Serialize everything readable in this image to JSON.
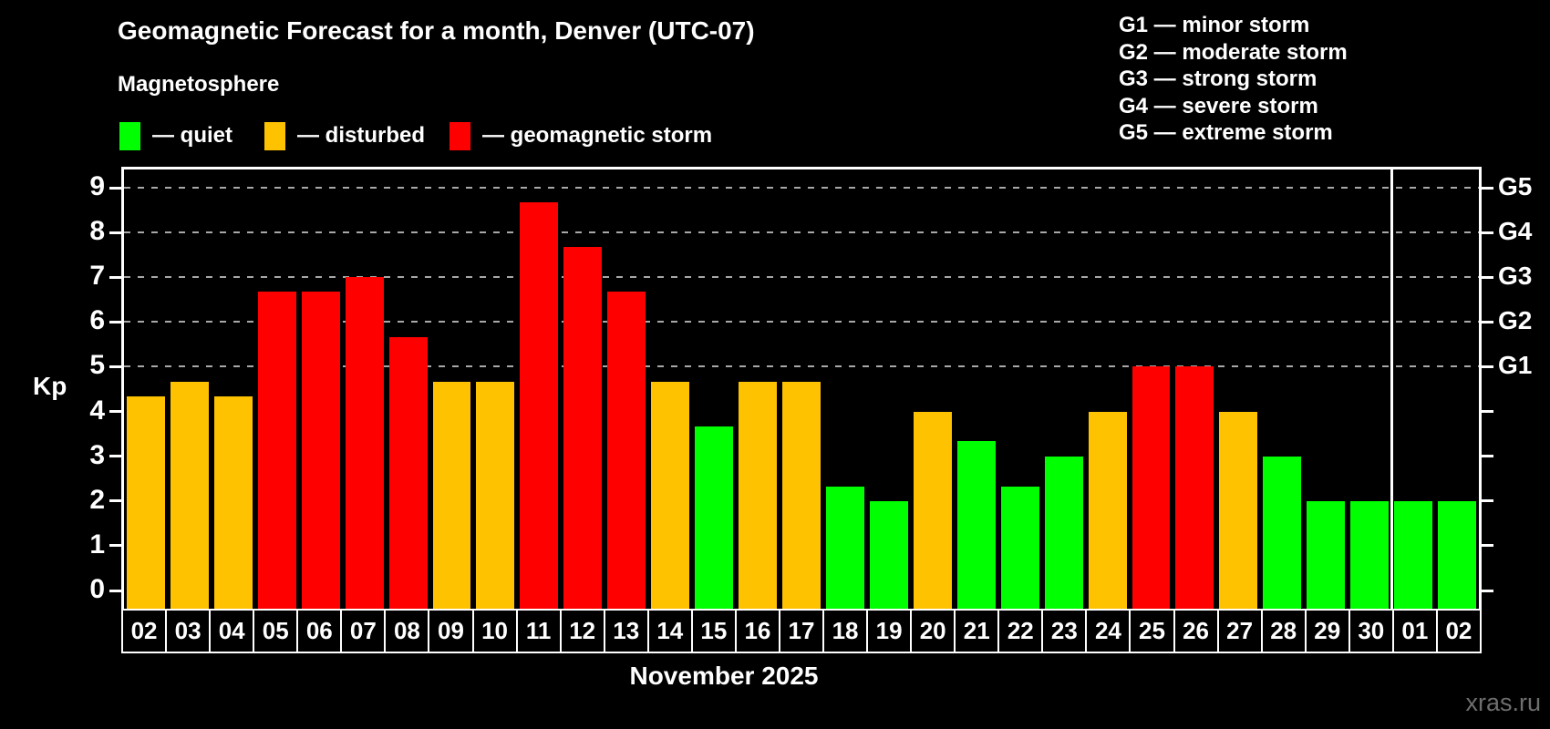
{
  "header": {
    "title": "Geomagnetic Forecast for a month, Denver (UTC-07)",
    "subtitle": "Magnetosphere"
  },
  "legend": {
    "items": [
      {
        "id": "quiet",
        "label": "— quiet",
        "color": "#00ff00"
      },
      {
        "id": "disturbed",
        "label": "— disturbed",
        "color": "#ffc200"
      },
      {
        "id": "storm",
        "label": "— geomagnetic storm",
        "color": "#ff0000"
      }
    ]
  },
  "storm_scale": {
    "items": [
      {
        "code": "G1",
        "label": "G1 — minor storm"
      },
      {
        "code": "G2",
        "label": "G2 — moderate storm"
      },
      {
        "code": "G3",
        "label": "G3 — strong storm"
      },
      {
        "code": "G4",
        "label": "G4 — severe storm"
      },
      {
        "code": "G5",
        "label": "G5 — extreme storm"
      }
    ]
  },
  "chart_data": {
    "type": "bar",
    "title": "Geomagnetic Forecast for a month, Denver (UTC-07)",
    "ylabel": "Kp",
    "xlabel": "November 2025",
    "ylim": [
      0,
      9
    ],
    "yticks": [
      0,
      1,
      2,
      3,
      4,
      5,
      6,
      7,
      8,
      9
    ],
    "grid_levels": [
      5,
      6,
      7,
      8,
      9
    ],
    "grid": "dashed",
    "legend_position": "top-left",
    "right_axis": [
      {
        "kp": 5,
        "label": "G1"
      },
      {
        "kp": 6,
        "label": "G2"
      },
      {
        "kp": 7,
        "label": "G3"
      },
      {
        "kp": 8,
        "label": "G4"
      },
      {
        "kp": 9,
        "label": "G5"
      }
    ],
    "categories": [
      "02",
      "03",
      "04",
      "05",
      "06",
      "07",
      "08",
      "09",
      "10",
      "11",
      "12",
      "13",
      "14",
      "15",
      "16",
      "17",
      "18",
      "19",
      "20",
      "21",
      "22",
      "23",
      "24",
      "25",
      "26",
      "27",
      "28",
      "29",
      "30",
      "01",
      "02"
    ],
    "values": [
      4.33,
      4.67,
      4.33,
      6.67,
      6.67,
      7,
      5.67,
      4.67,
      4.67,
      8.67,
      7.67,
      6.67,
      4.67,
      3.67,
      4.67,
      4.67,
      2.33,
      2,
      4,
      3.33,
      2.33,
      3,
      4,
      5,
      5,
      4,
      3,
      2,
      2,
      2,
      2
    ],
    "levels": [
      "disturbed",
      "disturbed",
      "disturbed",
      "storm",
      "storm",
      "storm",
      "storm",
      "disturbed",
      "disturbed",
      "storm",
      "storm",
      "storm",
      "disturbed",
      "quiet",
      "disturbed",
      "disturbed",
      "quiet",
      "quiet",
      "disturbed",
      "quiet",
      "quiet",
      "quiet",
      "disturbed",
      "storm",
      "storm",
      "disturbed",
      "quiet",
      "quiet",
      "quiet",
      "quiet",
      "quiet"
    ],
    "month_separator_after_index": 28
  },
  "colors": {
    "quiet": "#00ff00",
    "disturbed": "#ffc200",
    "storm": "#ff0000",
    "background": "#000000",
    "axis": "#ffffff",
    "grid": "#a8a8a8",
    "watermark": "#6e6e6e"
  },
  "watermark": "xras.ru"
}
